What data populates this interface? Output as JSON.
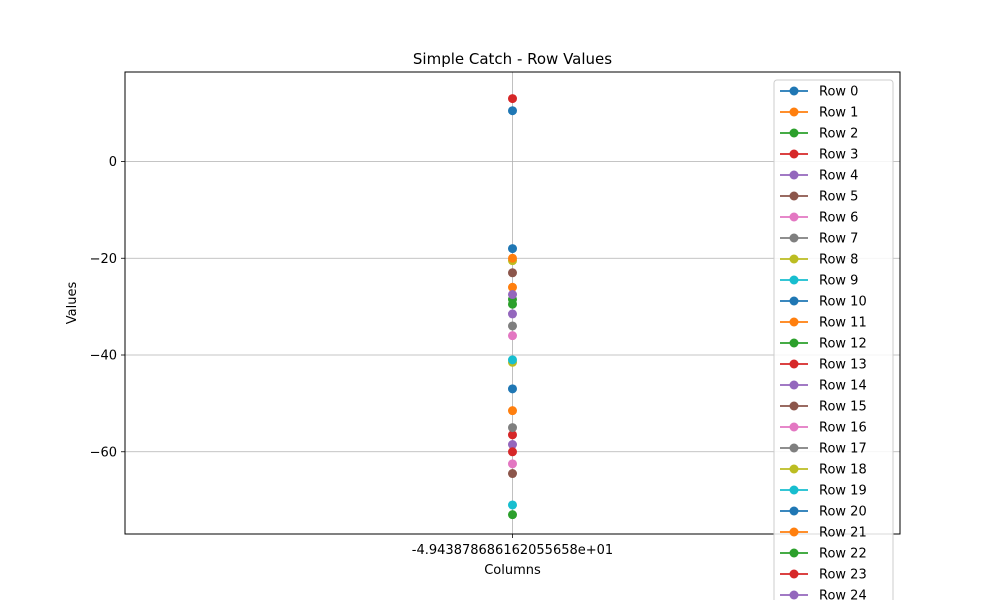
{
  "chart_data": {
    "type": "line",
    "title": "Simple Catch - Row Values",
    "xlabel": "Columns",
    "ylabel": "Values",
    "x_tick_labels": [
      "-4.94387868616205565​8e+01"
    ],
    "y_ticks": [
      0,
      -20,
      -40,
      -60
    ],
    "ylim": [
      -77,
      18.5
    ],
    "grid": true,
    "legend_position": "upper-right",
    "series": [
      {
        "name": "Row 0",
        "color": "#1f77b4",
        "values": [
          10.5
        ]
      },
      {
        "name": "Row 1",
        "color": "#ff7f0e",
        "values": [
          -26.0
        ]
      },
      {
        "name": "Row 2",
        "color": "#2ca02c",
        "values": [
          -29.5
        ]
      },
      {
        "name": "Row 3",
        "color": "#d62728",
        "values": [
          -56.5
        ]
      },
      {
        "name": "Row 4",
        "color": "#9467bd",
        "values": [
          -58.5
        ]
      },
      {
        "name": "Row 5",
        "color": "#8c564b",
        "values": [
          -64.5
        ]
      },
      {
        "name": "Row 6",
        "color": "#e377c2",
        "values": [
          -36.0
        ]
      },
      {
        "name": "Row 7",
        "color": "#7f7f7f",
        "values": [
          -34.0
        ]
      },
      {
        "name": "Row 8",
        "color": "#bcbd22",
        "values": [
          -41.5
        ]
      },
      {
        "name": "Row 9",
        "color": "#17becf",
        "values": [
          -71.0
        ]
      },
      {
        "name": "Row 10",
        "color": "#1f77b4",
        "values": [
          -47.0
        ]
      },
      {
        "name": "Row 11",
        "color": "#ff7f0e",
        "values": [
          -51.5
        ]
      },
      {
        "name": "Row 12",
        "color": "#2ca02c",
        "values": [
          -73.0
        ]
      },
      {
        "name": "Row 13",
        "color": "#d62728",
        "values": [
          -60.0
        ]
      },
      {
        "name": "Row 14",
        "color": "#9467bd",
        "values": [
          -31.5
        ]
      },
      {
        "name": "Row 15",
        "color": "#8c564b",
        "values": [
          -23.0
        ]
      },
      {
        "name": "Row 16",
        "color": "#e377c2",
        "values": [
          -62.5
        ]
      },
      {
        "name": "Row 17",
        "color": "#7f7f7f",
        "values": [
          -55.0
        ]
      },
      {
        "name": "Row 18",
        "color": "#bcbd22",
        "values": [
          -20.5
        ]
      },
      {
        "name": "Row 19",
        "color": "#17becf",
        "values": [
          -41.0
        ]
      },
      {
        "name": "Row 20",
        "color": "#1f77b4",
        "values": [
          -18.0
        ]
      },
      {
        "name": "Row 21",
        "color": "#ff7f0e",
        "values": [
          -20.0
        ]
      },
      {
        "name": "Row 22",
        "color": "#2ca02c",
        "values": [
          -28.5
        ]
      },
      {
        "name": "Row 23",
        "color": "#d62728",
        "values": [
          13.0
        ]
      },
      {
        "name": "Row 24",
        "color": "#9467bd",
        "values": [
          -27.5
        ]
      }
    ]
  }
}
